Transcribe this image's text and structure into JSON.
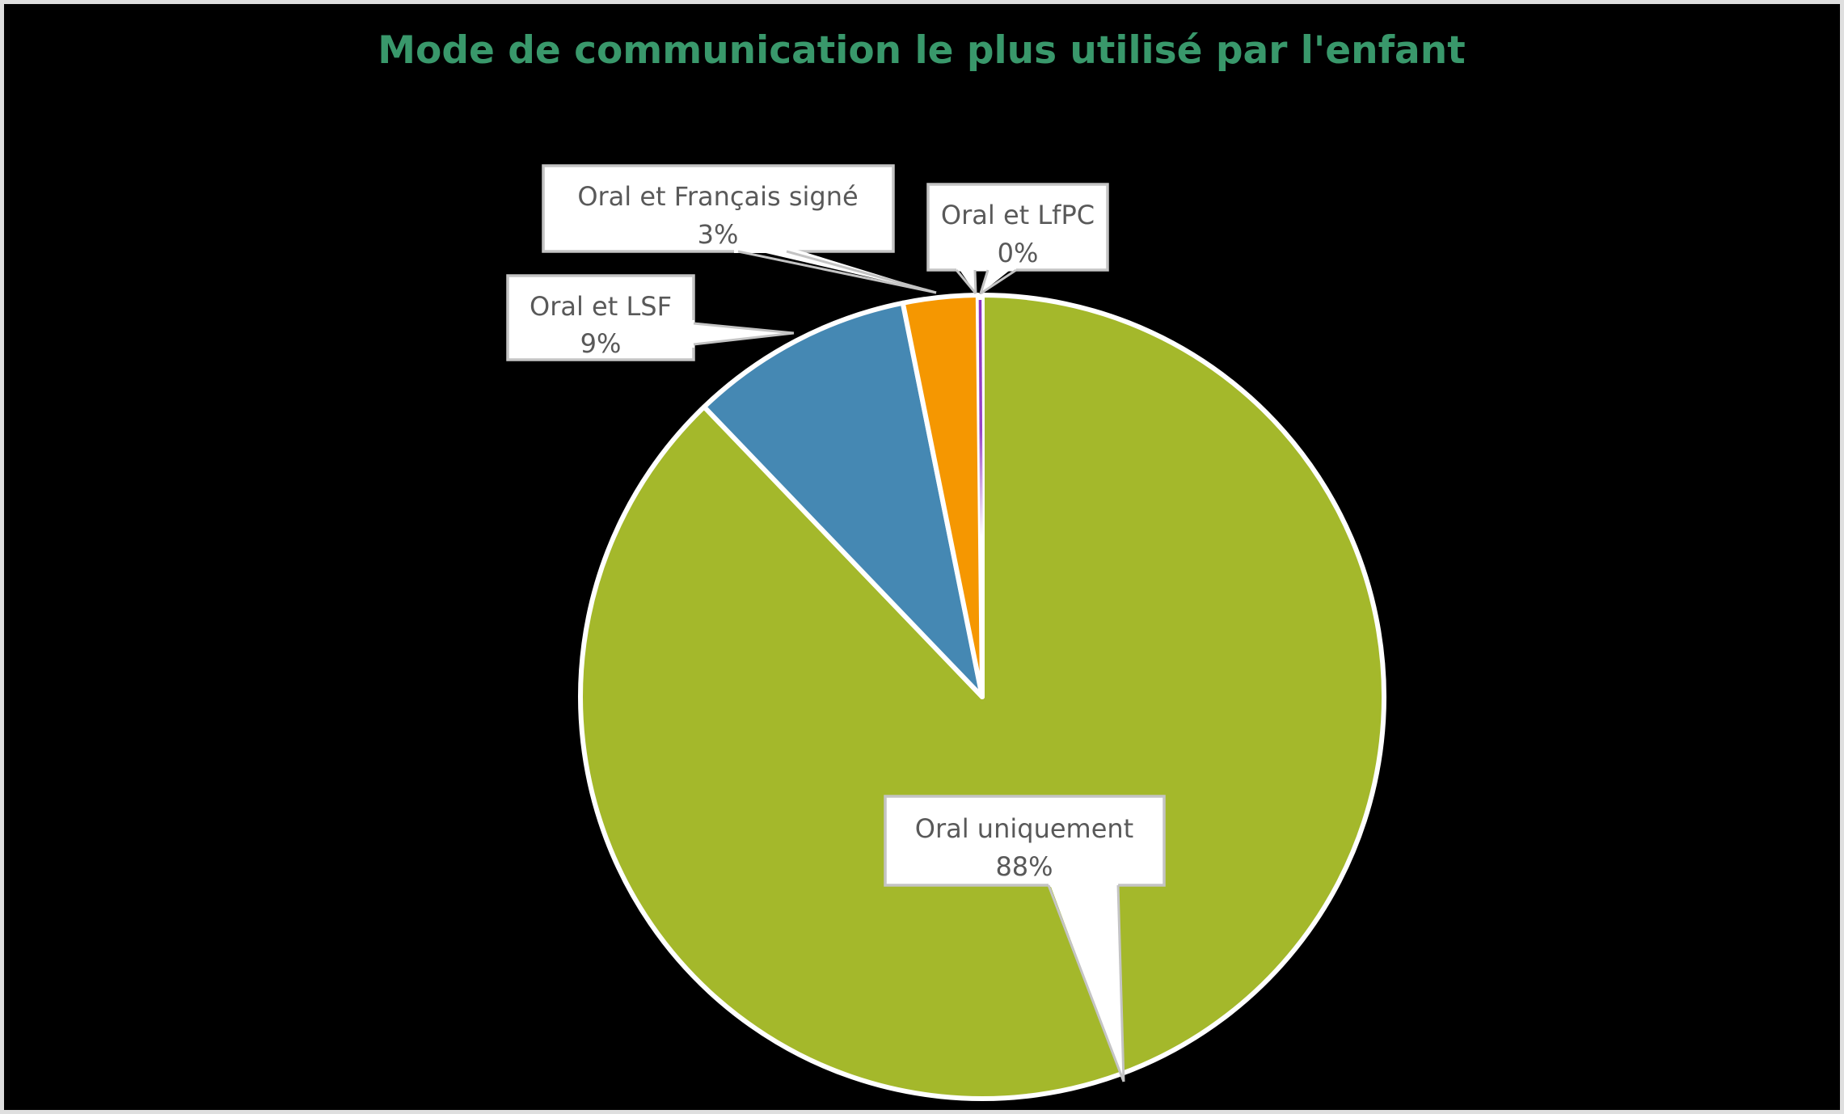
{
  "frame": {
    "background": "#000000",
    "border_color": "#DFDFDF"
  },
  "chart_data": {
    "type": "pie",
    "title": "Mode de communication le plus utilisé par l'enfant",
    "title_color": "#39986B",
    "start_angle": "12-oclock",
    "direction": "clockwise",
    "legend": "none",
    "labels_style": "white callout boxes with gray leader pointers, each showing category name and percent",
    "slice_separator_color": "#FFFFFF",
    "callout": {
      "fill": "#FFFFFF",
      "border_color": "#C4C4C4",
      "text_color": "#595959"
    },
    "slices": [
      {
        "label": "Oral uniquement",
        "value_pct": 88,
        "value_label": "88%",
        "color": "#A4B82B"
      },
      {
        "label": "Oral et LSF",
        "value_pct": 9,
        "value_label": "9%",
        "color": "#4588B3"
      },
      {
        "label": "Oral et Français signé",
        "value_pct": 3,
        "value_label": "3%",
        "color": "#F59701"
      },
      {
        "label": "Oral et LfPC",
        "value_pct": 0,
        "value_label": "0%",
        "color": "#8B2FC0"
      }
    ]
  }
}
